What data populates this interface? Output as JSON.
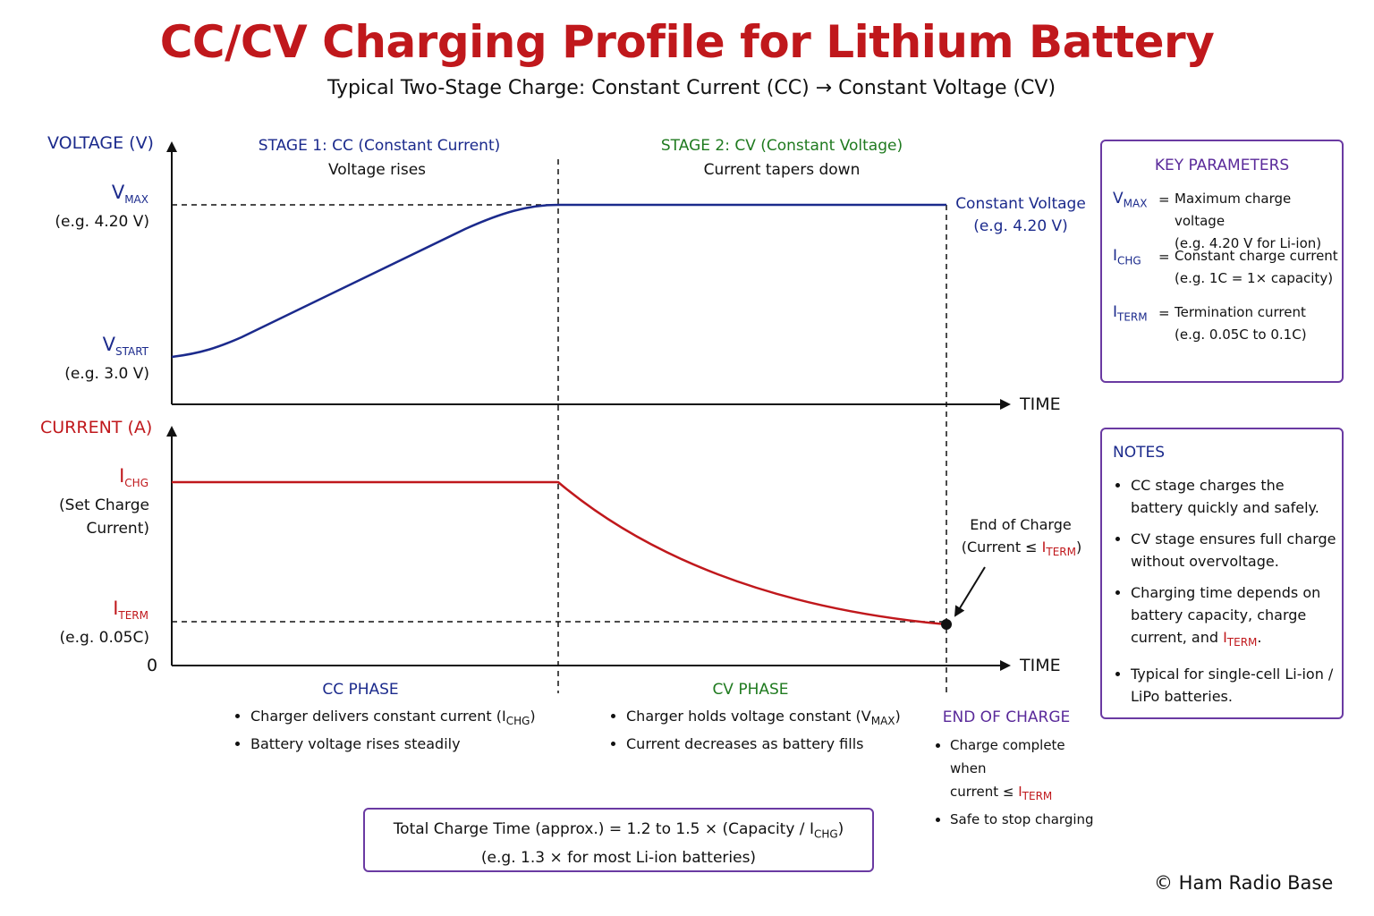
{
  "header": {
    "title": "CC/CV Charging Profile for Lithium Battery",
    "subtitle": "Typical Two-Stage Charge: Constant Current (CC) → Constant Voltage (CV)"
  },
  "voltage_plot": {
    "axis_title": "VOLTAGE (V)",
    "vmax_label": "V",
    "vmax_sub": "MAX",
    "vmax_note": "(e.g. 4.20 V)",
    "vstart_label": "V",
    "vstart_sub": "START",
    "vstart_note": "(e.g. 3.0 V)",
    "time_label": "TIME",
    "stage1_head": "STAGE 1: CC (Constant Current)",
    "stage1_sub": "Voltage rises",
    "stage2_head": "STAGE 2: CV (Constant Voltage)",
    "stage2_sub": "Current tapers down",
    "cv_note_line1": "Constant Voltage",
    "cv_note_line2": "(e.g. 4.20 V)"
  },
  "current_plot": {
    "axis_title": "CURRENT (A)",
    "ichg_label": "I",
    "ichg_sub": "CHG",
    "ichg_note_line1": "(Set Charge",
    "ichg_note_line2": "Current)",
    "iterm_label": "I",
    "iterm_sub": "TERM",
    "iterm_note": "(e.g. 0.05C)",
    "zero_label": "0",
    "time_label": "TIME",
    "end_note_line1": "End of Charge",
    "end_note_line2_prefix": "(Current ≤ ",
    "end_note_i": "I",
    "end_note_sub": "TERM",
    "end_note_suffix": ")"
  },
  "phases": {
    "cc_head": "CC PHASE",
    "cc_b1_prefix": "Charger delivers constant current (I",
    "cc_b1_sub": "CHG",
    "cc_b1_suffix": ")",
    "cc_b2": "Battery voltage rises steadily",
    "cv_head": "CV PHASE",
    "cv_b1_prefix": "Charger holds voltage constant (V",
    "cv_b1_sub": "MAX",
    "cv_b1_suffix": ")",
    "cv_b2": "Current decreases as battery fills",
    "end_head": "END OF CHARGE",
    "end_b1_line1": "Charge complete when",
    "end_b1_line2_prefix": "current ≤ ",
    "end_b1_i": "I",
    "end_b1_sub": "TERM",
    "end_b2": "Safe to stop charging"
  },
  "key_parameters": {
    "title": "KEY PARAMETERS",
    "items": [
      {
        "sym": "V",
        "sub": "MAX",
        "eq": "=",
        "line1": "Maximum charge voltage",
        "line2": "(e.g. 4.20 V for Li-ion)"
      },
      {
        "sym": "I",
        "sub": "CHG",
        "eq": "=",
        "line1": "Constant charge current",
        "line2": "(e.g. 1C = 1× capacity)"
      },
      {
        "sym": "I",
        "sub": "TERM",
        "eq": "=",
        "line1": "Termination current",
        "line2": "(e.g. 0.05C to 0.1C)"
      }
    ]
  },
  "notes": {
    "title": "NOTES",
    "n1": "CC stage charges the battery quickly and safely.",
    "n2": "CV stage ensures full charge without overvoltage.",
    "n3_prefix": "Charging time depends on battery capacity, charge current, and ",
    "n3_i": "I",
    "n3_sub": "TERM",
    "n3_suffix": ".",
    "n4": "Typical for single-cell Li-ion / LiPo batteries."
  },
  "formula": {
    "line1_prefix": "Total Charge Time (approx.) = 1.2 to 1.5 × (Capacity / I",
    "line1_sub": "CHG",
    "line1_suffix": ")",
    "line2": "(e.g. 1.3 × for most Li-ion batteries)"
  },
  "footer": {
    "copyright": "© Ham Radio Base"
  },
  "colors": {
    "voltage": "#1b2a8c",
    "current": "#c0181c",
    "cv_green": "#1f7a1f",
    "box_border": "#6a3aa2"
  }
}
